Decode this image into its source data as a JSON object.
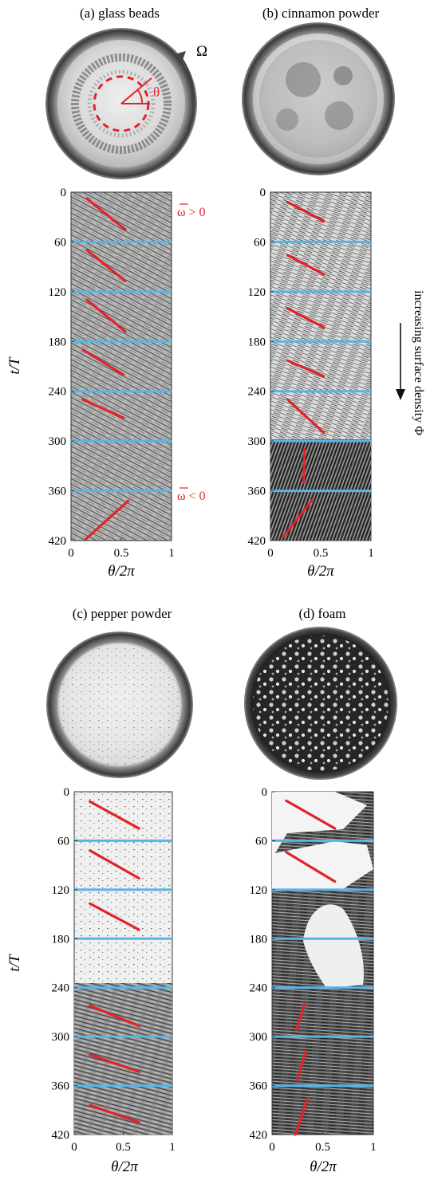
{
  "panels": [
    {
      "id": "a",
      "title": "(a) glass beads",
      "photo": "glass-beads-dish",
      "overlay": {
        "rotation_symbol": "Ω",
        "angle_symbol": "θ"
      },
      "annotations": {
        "top": "ω > 0",
        "bottom": "ω < 0"
      },
      "bg": "#a3a3a3",
      "fit_lines": [
        {
          "t0": 8,
          "t1": 45,
          "x0": 0.16,
          "x1": 0.54
        },
        {
          "t0": 70,
          "t1": 107,
          "x0": 0.16,
          "x1": 0.54
        },
        {
          "t0": 130,
          "t1": 168,
          "x0": 0.16,
          "x1": 0.54
        },
        {
          "t0": 190,
          "t1": 220,
          "x0": 0.12,
          "x1": 0.52
        },
        {
          "t0": 250,
          "t1": 272,
          "x0": 0.12,
          "x1": 0.52
        },
        {
          "t0": 418,
          "t1": 372,
          "x0": 0.15,
          "x1": 0.57
        }
      ]
    },
    {
      "id": "b",
      "title": "(b) cinnamon powder",
      "photo": "cinnamon-dish",
      "annotations": {},
      "bg": "#c9c9c9",
      "fit_lines": [
        {
          "t0": 12,
          "t1": 35,
          "x0": 0.17,
          "x1": 0.53
        },
        {
          "t0": 76,
          "t1": 99,
          "x0": 0.17,
          "x1": 0.53
        },
        {
          "t0": 140,
          "t1": 163,
          "x0": 0.17,
          "x1": 0.53
        },
        {
          "t0": 203,
          "t1": 222,
          "x0": 0.17,
          "x1": 0.53
        },
        {
          "t0": 250,
          "t1": 290,
          "x0": 0.17,
          "x1": 0.53
        },
        {
          "t0": 350,
          "t1": 310,
          "x0": 0.33,
          "x1": 0.34
        },
        {
          "t0": 415,
          "t1": 372,
          "x0": 0.13,
          "x1": 0.41
        }
      ]
    },
    {
      "id": "c",
      "title": "(c) pepper powder",
      "photo": "pepper-dish",
      "annotations": {},
      "bg": "#ececec",
      "fit_lines": [
        {
          "t0": 12,
          "t1": 45,
          "x0": 0.16,
          "x1": 0.66
        },
        {
          "t0": 72,
          "t1": 106,
          "x0": 0.16,
          "x1": 0.66
        },
        {
          "t0": 137,
          "t1": 169,
          "x0": 0.16,
          "x1": 0.66
        },
        {
          "t0": 262,
          "t1": 287,
          "x0": 0.16,
          "x1": 0.66
        },
        {
          "t0": 322,
          "t1": 343,
          "x0": 0.16,
          "x1": 0.66
        },
        {
          "t0": 384,
          "t1": 405,
          "x0": 0.16,
          "x1": 0.66
        }
      ]
    },
    {
      "id": "d",
      "title": "(d) foam",
      "photo": "foam-dish",
      "annotations": {},
      "bg": "#5a5a5a",
      "fit_lines": [
        {
          "t0": 11,
          "t1": 45,
          "x0": 0.14,
          "x1": 0.62
        },
        {
          "t0": 74,
          "t1": 110,
          "x0": 0.14,
          "x1": 0.62
        },
        {
          "t0": 292,
          "t1": 260,
          "x0": 0.24,
          "x1": 0.32
        },
        {
          "t0": 353,
          "t1": 318,
          "x0": 0.25,
          "x1": 0.33
        },
        {
          "t0": 420,
          "t1": 376,
          "x0": 0.23,
          "x1": 0.35
        }
      ]
    }
  ],
  "axes": {
    "ylabel": "t/T",
    "xlabel": "θ/2π",
    "yticks": [
      "0",
      "60",
      "120",
      "180",
      "240",
      "300",
      "360",
      "420"
    ],
    "xticks": [
      "0",
      "0.5",
      "1"
    ],
    "ylim": [
      0,
      420
    ],
    "xlim": [
      0,
      1
    ]
  },
  "side_label": "increasing surface density Φ",
  "colors": {
    "fit": "#e0242a",
    "separator": "#5ab4e6",
    "annotation": "#e0242a"
  }
}
